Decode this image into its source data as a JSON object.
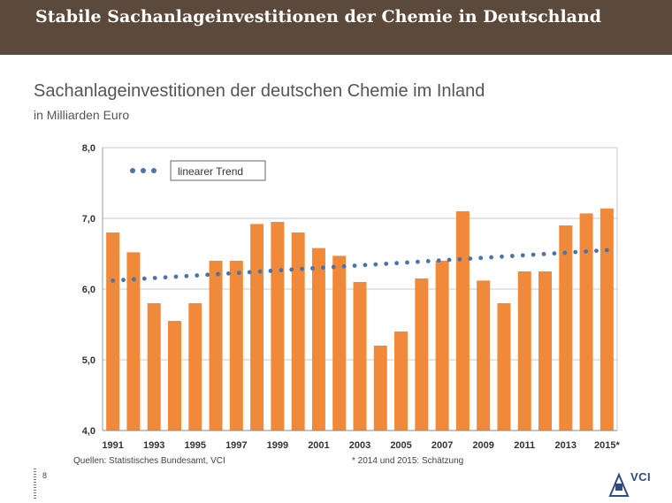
{
  "header": {
    "title": "Stabile Sachanlageinvestitionen der Chemie in Deutschland"
  },
  "chart_data": {
    "type": "bar",
    "title": "Sachanlageinvestitionen der deutschen Chemie im Inland",
    "subtitle": "in Milliarden Euro",
    "xlabel": "",
    "ylabel": "",
    "ylim": [
      4.0,
      8.0
    ],
    "yticks": [
      "4,0",
      "5,0",
      "6,0",
      "7,0",
      "8,0"
    ],
    "categories": [
      "1991",
      "1992",
      "1993",
      "1994",
      "1995",
      "1996",
      "1997",
      "1998",
      "1999",
      "2000",
      "2001",
      "2002",
      "2003",
      "2004",
      "2005",
      "2006",
      "2007",
      "2008",
      "2009",
      "2010",
      "2011",
      "2012",
      "2013",
      "2014",
      "2015*"
    ],
    "xtick_labels": [
      "1991",
      "1993",
      "1995",
      "1997",
      "1999",
      "2001",
      "2003",
      "2005",
      "2007",
      "2009",
      "2011",
      "2013",
      "2015*"
    ],
    "series": [
      {
        "name": "Sachanlageinvestitionen",
        "color": "#f0893a",
        "values": [
          6.8,
          6.52,
          5.8,
          5.55,
          5.8,
          6.4,
          6.4,
          6.92,
          6.95,
          6.8,
          6.58,
          6.47,
          6.1,
          5.2,
          5.4,
          6.15,
          6.4,
          7.1,
          6.12,
          5.8,
          6.25,
          6.25,
          6.9,
          7.07,
          7.14
        ]
      }
    ],
    "trend": {
      "name": "linearer Trend",
      "color": "#4a73a8",
      "start": 6.12,
      "end": 6.55
    },
    "legend": {
      "label": "linearer Trend",
      "position": "top-left"
    },
    "grid": true
  },
  "footer": {
    "source": "Quellen: Statistisches Bundesamt, VCI",
    "note": "* 2014 und 2015: Schätzung",
    "page": "8",
    "logo": "VCI"
  }
}
